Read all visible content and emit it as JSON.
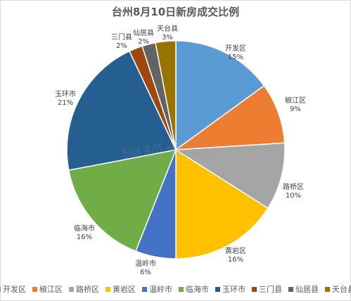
{
  "chart_data": {
    "type": "pie",
    "title": "台州8月10日新房成交比例",
    "slices": [
      {
        "name": "开发区",
        "value": 15,
        "label": "15%",
        "color": "#5b9bd5"
      },
      {
        "name": "椒江区",
        "value": 9,
        "label": "9%",
        "color": "#ed7d31"
      },
      {
        "name": "路桥区",
        "value": 10,
        "label": "10%",
        "color": "#a5a5a5"
      },
      {
        "name": "黄岩区",
        "value": 16,
        "label": "16%",
        "color": "#ffc000"
      },
      {
        "name": "温岭市",
        "value": 6,
        "label": "6%",
        "color": "#4472c4"
      },
      {
        "name": "临海市",
        "value": 16,
        "label": "16%",
        "color": "#70ad47"
      },
      {
        "name": "玉环市",
        "value": 21,
        "label": "21%",
        "color": "#255e91"
      },
      {
        "name": "三门县",
        "value": 2,
        "label": "2%",
        "color": "#9e480e"
      },
      {
        "name": "仙居县",
        "value": 2,
        "label": "2%",
        "color": "#636363"
      },
      {
        "name": "天台县",
        "value": 3,
        "label": "3%",
        "color": "#997300"
      }
    ],
    "legend_position": "bottom"
  },
  "watermark": "搜狐焦点"
}
